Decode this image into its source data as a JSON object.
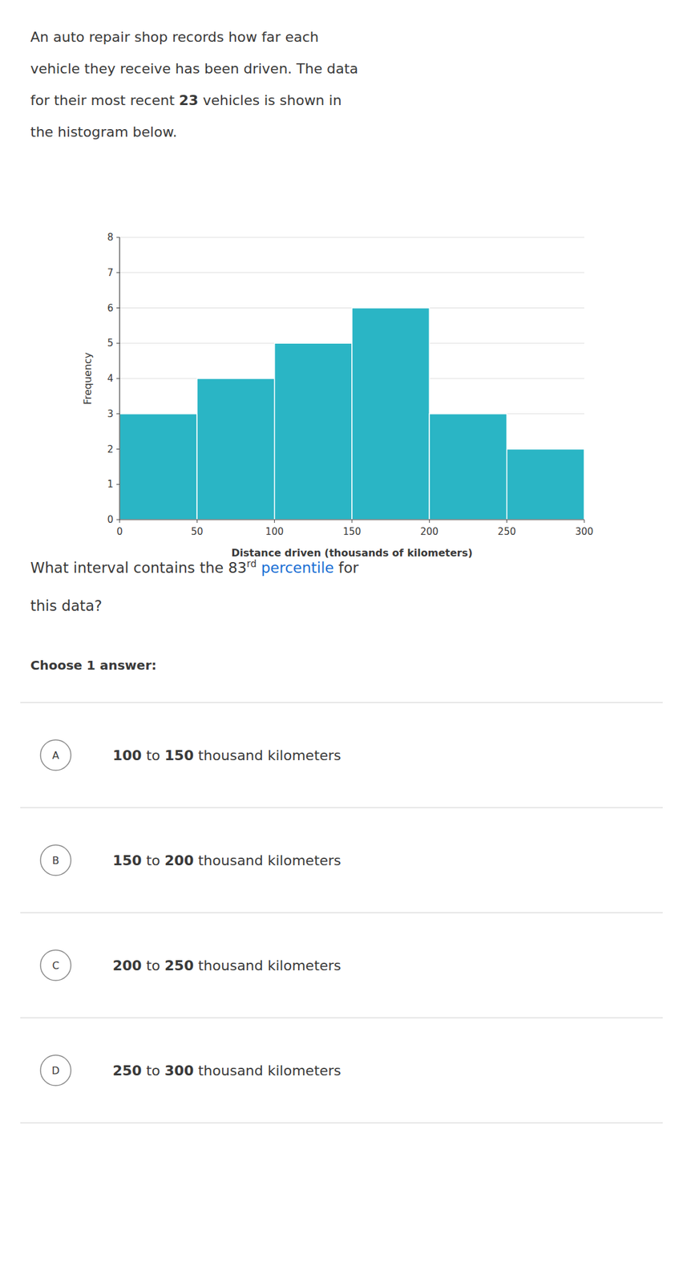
{
  "chart_data": {
    "type": "histogram",
    "bins": [
      0,
      50,
      100,
      150,
      200,
      250,
      300
    ],
    "values": [
      3,
      4,
      5,
      6,
      3,
      2
    ],
    "color": "#2ab5c5",
    "xlabel": "Distance driven (thousands of kilometers)",
    "ylabel": "Frequency",
    "xlim": [
      0,
      300
    ],
    "ylim": [
      0,
      8
    ],
    "xticks": [
      0,
      50,
      100,
      150,
      200,
      250,
      300
    ],
    "yticks": [
      0,
      1,
      2,
      3,
      4,
      5,
      6,
      7,
      8
    ],
    "grid": true
  },
  "intro": [
    "An auto repair shop records how far each",
    "vehicle they receive has been driven. The data",
    [
      "for their most recent ",
      "23",
      " vehicles is shown in"
    ],
    "the histogram below."
  ],
  "question": {
    "lines": [
      [
        "What interval contains the 83",
        "rd",
        " percentile",
        " for"
      ],
      [
        "this data?"
      ]
    ],
    "color": "#1a6fd4"
  },
  "prompt": "Choose 1 answer:",
  "choices": [
    {
      "letter": "A",
      "text": [
        "100",
        " to ",
        "150",
        " thousand kilometers"
      ]
    },
    {
      "letter": "B",
      "text": [
        "150",
        " to ",
        "200",
        " thousand kilometers"
      ]
    },
    {
      "letter": "C",
      "text": [
        "200",
        " to ",
        "250",
        " thousand kilometers"
      ]
    },
    {
      "letter": "D",
      "text": [
        "250",
        " to ",
        "300",
        " thousand kilometers"
      ]
    }
  ]
}
